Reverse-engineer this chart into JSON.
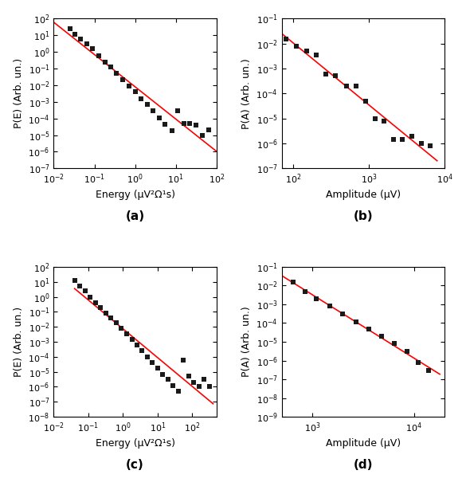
{
  "panels": [
    {
      "label": "(a)",
      "xlabel": "Energy (μV²Ω¹s)",
      "ylabel": "P(E) (Arb. un.)",
      "xlim": [
        0.01,
        100
      ],
      "ylim": [
        1e-07,
        100.0
      ],
      "x_data": [
        0.025,
        0.033,
        0.045,
        0.065,
        0.09,
        0.13,
        0.18,
        0.25,
        0.35,
        0.5,
        0.7,
        1.0,
        1.4,
        2.0,
        2.8,
        4.0,
        5.5,
        8.0,
        11,
        16,
        22,
        32,
        45,
        65
      ],
      "y_data": [
        25.0,
        12.0,
        6.0,
        3.0,
        1.5,
        0.6,
        0.25,
        0.12,
        0.05,
        0.022,
        0.009,
        0.004,
        0.0016,
        0.0007,
        0.00028,
        0.00011,
        4.5e-05,
        1.8e-05,
        0.0003,
        5e-05,
        5e-05,
        4e-05,
        1e-05,
        2e-05
      ],
      "fit_slope": -1.4,
      "fit_intercept_log": 1.1,
      "fit_x": [
        0.01,
        100
      ],
      "xticks": [
        0.01,
        0.1,
        1.0,
        10,
        100
      ],
      "yticks": [
        1e-07,
        1e-06,
        1e-05,
        0.0001,
        0.001,
        0.01,
        0.1,
        1.0,
        10.0,
        100.0
      ]
    },
    {
      "label": "(b)",
      "xlabel": "Amplitude (μV)",
      "ylabel": "P(A) (Arb. un.)",
      "xlim": [
        70.0,
        10000.0
      ],
      "ylim": [
        1e-07,
        0.1
      ],
      "x_data": [
        80,
        110,
        150,
        200,
        270,
        360,
        500,
        680,
        900,
        1200,
        1600,
        2100,
        2800,
        3700,
        5000,
        6500
      ],
      "y_data": [
        0.015,
        0.008,
        0.005,
        0.0035,
        0.0006,
        0.0005,
        0.0002,
        0.0002,
        5e-05,
        1e-05,
        8e-06,
        1.5e-06,
        1.5e-06,
        2e-06,
        1e-06,
        8e-07
      ],
      "fit_slope": -2.8,
      "fit_intercept_log": 3.5,
      "fit_x": [
        70,
        8000
      ],
      "xticks": [
        100,
        1000,
        10000
      ],
      "yticks": [
        1e-07,
        1e-06,
        1e-05,
        0.0001,
        0.001,
        0.01,
        0.1
      ]
    },
    {
      "label": "(c)",
      "xlabel": "Energy (μV²Ω¹s)",
      "ylabel": "P(E) (Arb. un.)",
      "xlim": [
        0.01,
        500
      ],
      "ylim": [
        1e-08,
        100.0
      ],
      "x_data": [
        0.04,
        0.055,
        0.08,
        0.11,
        0.16,
        0.22,
        0.32,
        0.45,
        0.63,
        0.9,
        1.25,
        1.8,
        2.5,
        3.5,
        5.0,
        7.0,
        10,
        14,
        20,
        28,
        40,
        55,
        80,
        110,
        160,
        220,
        320
      ],
      "y_data": [
        12.0,
        5.0,
        2.5,
        1.0,
        0.4,
        0.2,
        0.08,
        0.04,
        0.02,
        0.008,
        0.0035,
        0.0015,
        0.0006,
        0.00025,
        0.0001,
        4e-05,
        1.8e-05,
        7e-06,
        3e-06,
        1.2e-06,
        5e-07,
        6e-05,
        5e-06,
        2e-06,
        1e-06,
        3e-06,
        1e-06
      ],
      "fit_slope": -1.4,
      "fit_intercept_log": 0.7,
      "fit_x": [
        0.04,
        400
      ],
      "xticks": [
        0.01,
        0.1,
        1.0,
        10,
        100
      ],
      "yticks": [
        1e-08,
        1e-07,
        1e-06,
        1e-05,
        0.0001,
        0.001,
        0.01,
        0.1,
        1.0,
        10.0,
        100.0
      ]
    },
    {
      "label": "(d)",
      "xlabel": "Amplitude (μV)",
      "ylabel": "P(A) (Arb. un.)",
      "xlim": [
        500.0,
        20000.0
      ],
      "ylim": [
        1e-09,
        0.1
      ],
      "x_data": [
        650,
        850,
        1100,
        1500,
        2000,
        2700,
        3600,
        4800,
        6400,
        8500,
        11000,
        14000
      ],
      "y_data": [
        0.015,
        0.005,
        0.002,
        0.0008,
        0.0003,
        0.00012,
        5e-05,
        2e-05,
        8e-06,
        3e-06,
        8e-07,
        3e-07
      ],
      "fit_slope": -3.0,
      "fit_intercept_log": 6.5,
      "fit_x": [
        500,
        18000
      ],
      "xticks": [
        1000,
        10000
      ],
      "yticks": [
        1e-09,
        1e-08,
        1e-07,
        1e-06,
        1e-05,
        0.0001,
        0.001,
        0.01,
        0.1
      ]
    }
  ],
  "marker_color": "#1a1a1a",
  "line_color": "red",
  "marker_style": "s",
  "marker_size": 16,
  "line_width": 1.2,
  "bg_color": "#ffffff",
  "label_fontsize": 9,
  "tick_fontsize": 8,
  "panel_label_fontsize": 11
}
